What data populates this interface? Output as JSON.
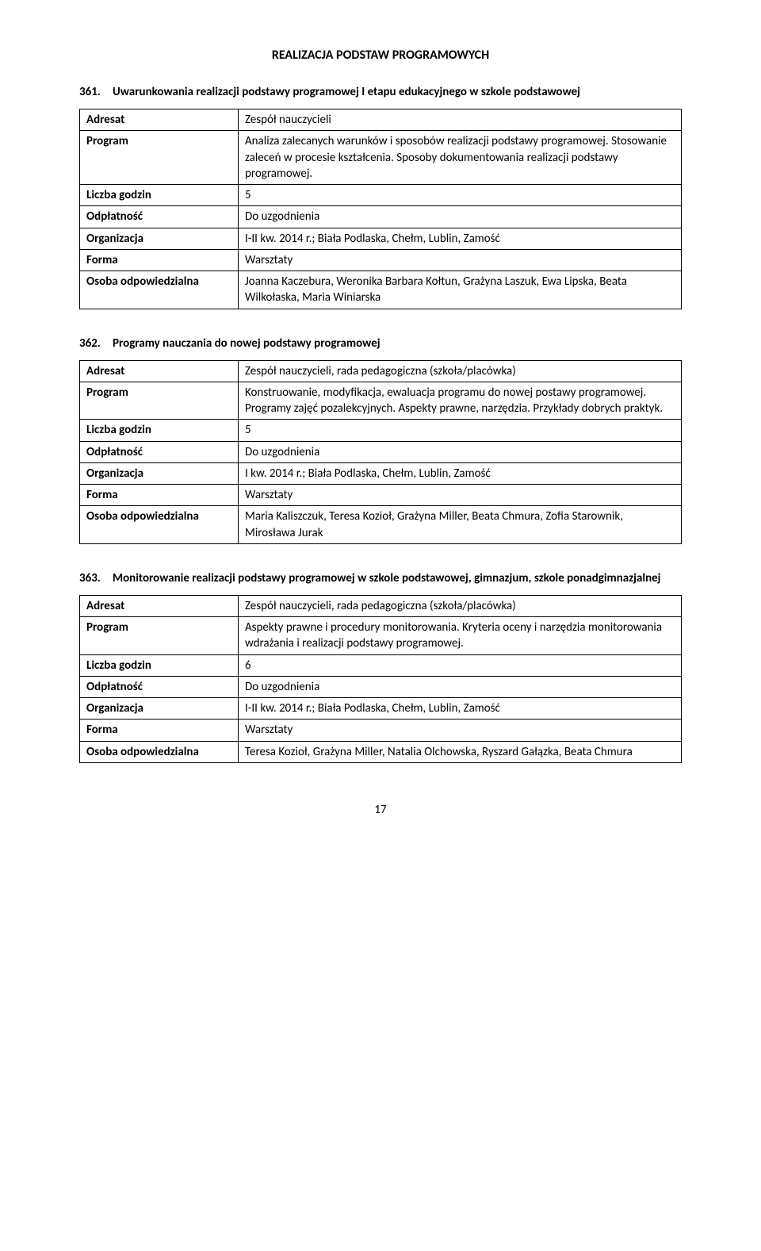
{
  "page": {
    "section_title": "REALIZACJA PODSTAW PROGRAMOWYCH",
    "number": "17"
  },
  "labels": {
    "adresat": "Adresat",
    "program": "Program",
    "liczba_godzin": "Liczba godzin",
    "odplatnosc": "Odpłatność",
    "organizacja": "Organizacja",
    "forma": "Forma",
    "osoba_odp": "Osoba odpowiedzialna"
  },
  "items": [
    {
      "num": "361.",
      "title": "Uwarunkowania realizacji podstawy programowej I etapu edukacyjnego w szkole podstawowej",
      "adresat": "Zespół nauczycieli",
      "program": "Analiza zalecanych warunków i sposobów realizacji podstawy programowej. Stosowanie zaleceń w procesie kształcenia. Sposoby dokumentowania realizacji podstawy programowej.",
      "liczba_godzin": "5",
      "odplatnosc": "Do uzgodnienia",
      "organizacja": "I-II kw. 2014 r.; Biała Podlaska, Chełm, Lublin, Zamość",
      "forma": "Warsztaty",
      "osoba_odp": "Joanna Kaczebura, Weronika Barbara Kołtun, Grażyna Laszuk, Ewa Lipska, Beata Wilkołaska, Maria Winiarska"
    },
    {
      "num": "362.",
      "title": "Programy nauczania do nowej podstawy programowej",
      "adresat": "Zespół nauczycieli, rada pedagogiczna (szkoła/placówka)",
      "program": "Konstruowanie, modyfikacja, ewaluacja programu do nowej postawy programowej. Programy zajęć pozalekcyjnych. Aspekty prawne, narzędzia. Przykłady dobrych praktyk.",
      "liczba_godzin": "5",
      "odplatnosc": "Do uzgodnienia",
      "organizacja": "I kw. 2014 r.; Biała Podlaska, Chełm, Lublin, Zamość",
      "forma": "Warsztaty",
      "osoba_odp": "Maria Kaliszczuk, Teresa Kozioł, Grażyna Miller, Beata Chmura, Zofia Starownik, Mirosława Jurak"
    },
    {
      "num": "363.",
      "title": "Monitorowanie realizacji podstawy programowej w szkole podstawowej, gimnazjum, szkole ponadgimnazjalnej",
      "adresat": "Zespół nauczycieli, rada pedagogiczna (szkoła/placówka)",
      "program": "Aspekty prawne i procedury monitorowania. Kryteria oceny i narzędzia monitorowania wdrażania i realizacji podstawy programowej.",
      "liczba_godzin": "6",
      "odplatnosc": "Do uzgodnienia",
      "organizacja": "I-II kw. 2014 r.; Biała Podlaska, Chełm, Lublin, Zamość",
      "forma": "Warsztaty",
      "osoba_odp": "Teresa Kozioł, Grażyna Miller, Natalia Olchowska, Ryszard Gałązka, Beata Chmura"
    }
  ]
}
